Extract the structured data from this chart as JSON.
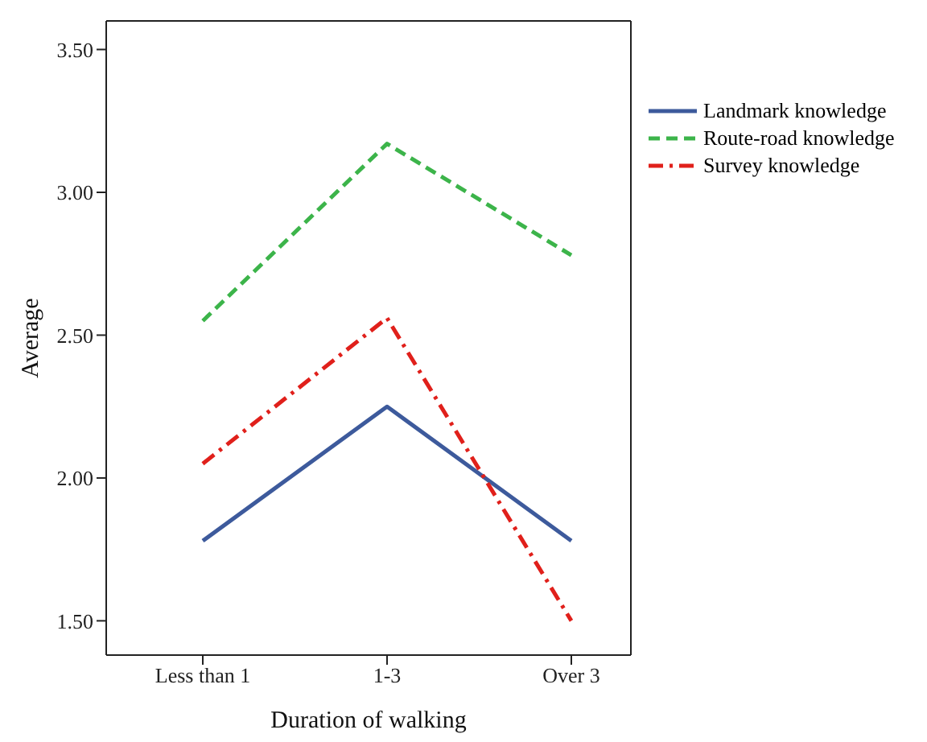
{
  "chart_data": {
    "type": "line",
    "xlabel": "Duration of walking",
    "ylabel": "Average",
    "categories": [
      "Less than 1",
      "1-3",
      "Over 3"
    ],
    "series": [
      {
        "name": "Landmark knowledge",
        "color": "#3d5a9c",
        "values": [
          1.78,
          2.25,
          1.78
        ],
        "line_style": "solid"
      },
      {
        "name": "Route-road knowledge",
        "color": "#3cb44a",
        "values": [
          2.55,
          3.17,
          2.78
        ],
        "line_style": "dashed"
      },
      {
        "name": "Survey knowledge",
        "color": "#e0201b",
        "values": [
          2.05,
          2.56,
          1.5
        ],
        "line_style": "dashdot"
      }
    ],
    "ylim": [
      1.38,
      3.6
    ],
    "yticks": [
      {
        "value": 1.5,
        "label": "1.50"
      },
      {
        "value": 2,
        "label": "2.00"
      },
      {
        "value": 2.5,
        "label": "2.50"
      },
      {
        "value": 3,
        "label": "3.00"
      },
      {
        "value": 3.5,
        "label": "3.50"
      }
    ],
    "grid": false,
    "legend": "right",
    "marker": "none"
  }
}
